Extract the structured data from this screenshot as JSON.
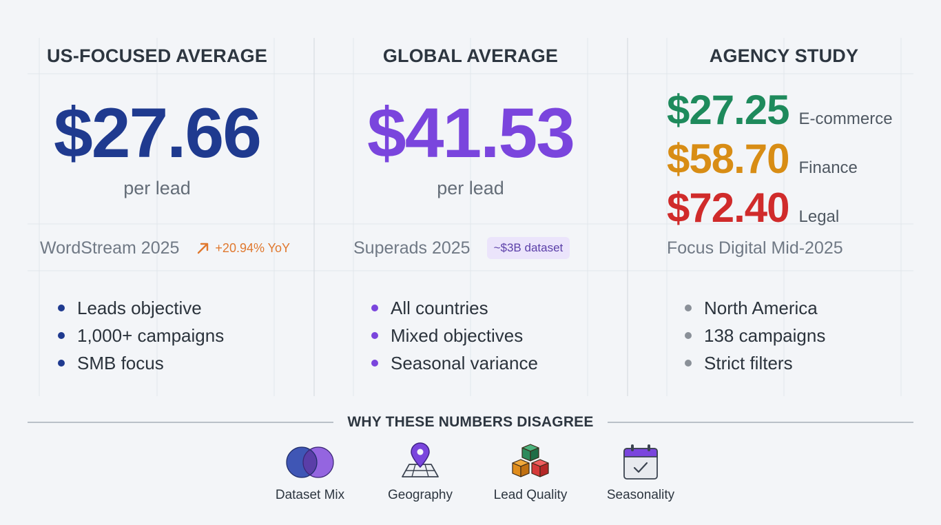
{
  "columns": [
    {
      "title": "US-FOCUSED AVERAGE",
      "price": "$27.66",
      "per_lead": "per lead",
      "source": "WordStream 2025",
      "tag": "+20.94% YoY",
      "bullets": [
        "Leads objective",
        "1,000+ campaigns",
        "SMB focus"
      ],
      "color": "#1f3a8f"
    },
    {
      "title": "GLOBAL AVERAGE",
      "price": "$41.53",
      "per_lead": "per lead",
      "source": "Superads 2025",
      "tag": "~$3B dataset",
      "bullets": [
        "All countries",
        "Mixed objectives",
        "Seasonal variance"
      ],
      "color": "#7a45dd"
    },
    {
      "title": "AGENCY STUDY",
      "segments": [
        {
          "price": "$27.25",
          "label": "E-commerce",
          "color": "#1e8a5c"
        },
        {
          "price": "$58.70",
          "label": "Finance",
          "color": "#d88d15"
        },
        {
          "price": "$72.40",
          "label": "Legal",
          "color": "#d02b2b"
        }
      ],
      "source": "Focus Digital Mid-2025",
      "bullets": [
        "North America",
        "138 campaigns",
        "Strict filters"
      ],
      "color": "#8a9098"
    }
  ],
  "divider_title": "WHY THESE NUMBERS DISAGREE",
  "reasons": [
    {
      "label": "Dataset Mix",
      "icon": "venn-diagram-icon"
    },
    {
      "label": "Geography",
      "icon": "map-pin-icon"
    },
    {
      "label": "Lead Quality",
      "icon": "stacked-cubes-icon"
    },
    {
      "label": "Seasonality",
      "icon": "calendar-check-icon"
    }
  ],
  "colors": {
    "background": "#f3f5f8",
    "trend_orange": "#e0782e",
    "pill_bg": "#ebe4fb"
  }
}
